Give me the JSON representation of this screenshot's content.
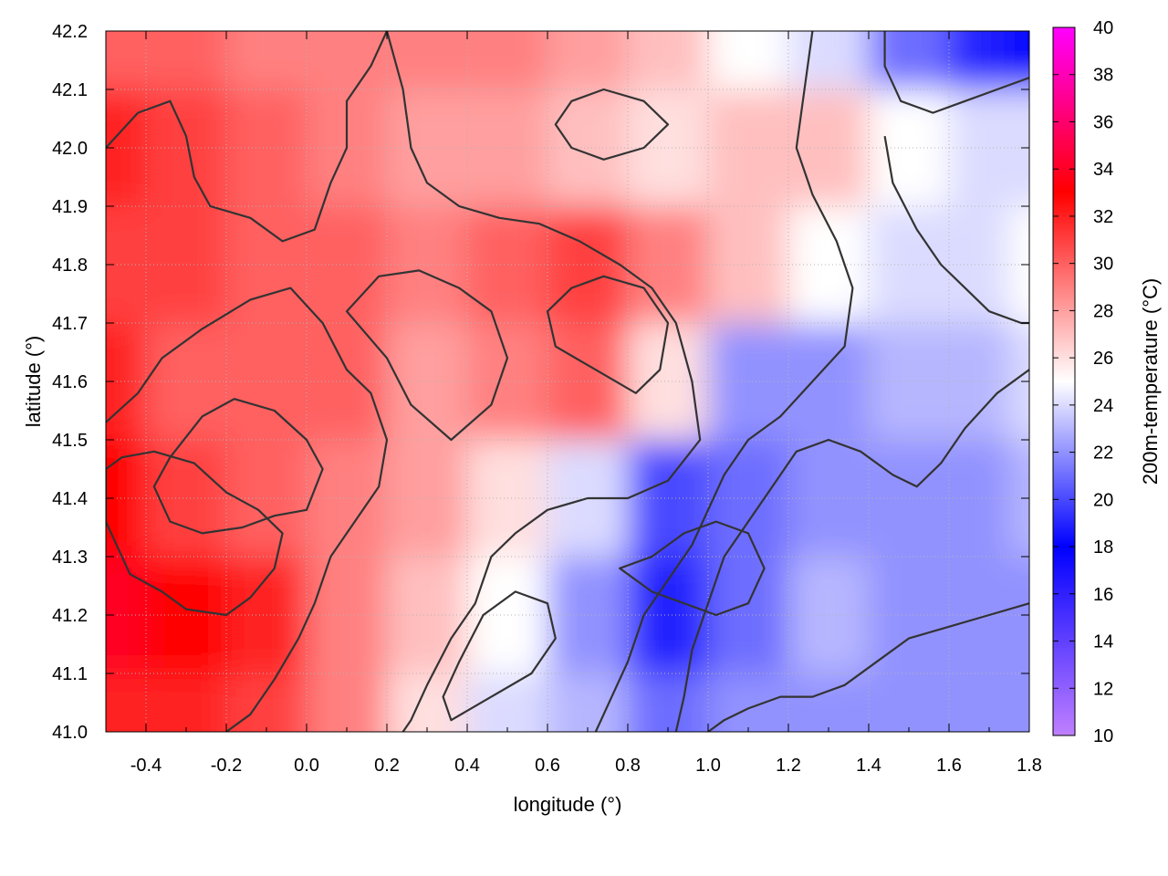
{
  "chart_data": {
    "type": "heatmap",
    "title": "",
    "xlabel": "longitude (°)",
    "ylabel": "latitude (°)",
    "colorbar_label": "200m-temperature (°C)",
    "xlim": [
      -0.5,
      1.8
    ],
    "ylim": [
      41.0,
      42.2
    ],
    "clim": [
      10,
      40
    ],
    "x_ticks": [
      -0.4,
      -0.2,
      0.0,
      0.2,
      0.4,
      0.6,
      0.8,
      1.0,
      1.2,
      1.4,
      1.6,
      1.8
    ],
    "x_tick_labels": [
      "-0.4",
      "-0.2",
      "0.0",
      "0.2",
      "0.4",
      "0.6",
      "0.8",
      "1.0",
      "1.2",
      "1.4",
      "1.6",
      "1.8"
    ],
    "y_ticks": [
      41.0,
      41.1,
      41.2,
      41.3,
      41.4,
      41.5,
      41.6,
      41.7,
      41.8,
      41.9,
      42.0,
      42.1,
      42.2
    ],
    "y_tick_labels": [
      "41.0",
      "41.1",
      "41.2",
      "41.3",
      "41.4",
      "41.5",
      "41.6",
      "41.7",
      "41.8",
      "41.9",
      "42.0",
      "42.1",
      "42.2"
    ],
    "colorbar_ticks": [
      10,
      12,
      14,
      16,
      18,
      20,
      22,
      24,
      26,
      28,
      30,
      32,
      34,
      36,
      38,
      40
    ],
    "colorbar_tick_labels": [
      "10",
      "12",
      "14",
      "16",
      "18",
      "20",
      "22",
      "24",
      "26",
      "28",
      "30",
      "32",
      "34",
      "36",
      "38",
      "40"
    ],
    "colormap": [
      {
        "value": 10,
        "color": "#c080ff"
      },
      {
        "value": 18,
        "color": "#0000ff"
      },
      {
        "value": 25,
        "color": "#ffffff"
      },
      {
        "value": 33,
        "color": "#ff0000"
      },
      {
        "value": 40,
        "color": "#ff00ff"
      }
    ],
    "grid": true,
    "temperature_field": {
      "x": [
        -0.5,
        -0.3,
        -0.1,
        0.1,
        0.3,
        0.5,
        0.7,
        0.9,
        1.1,
        1.3,
        1.5,
        1.7,
        1.8
      ],
      "y": [
        41.0,
        41.2,
        41.4,
        41.6,
        41.8,
        42.0,
        42.2
      ],
      "z": [
        [
          32,
          32,
          31,
          29,
          26,
          24,
          23,
          21,
          22,
          22,
          22,
          22,
          22
        ],
        [
          34,
          33,
          32,
          29,
          27,
          25,
          22,
          19,
          21,
          23,
          22,
          22,
          22
        ],
        [
          33,
          31,
          30,
          29,
          28,
          26,
          24,
          20,
          21,
          22,
          22,
          22,
          23
        ],
        [
          32,
          30,
          30,
          30,
          28,
          29,
          30,
          26,
          22,
          22,
          23,
          23,
          24
        ],
        [
          31,
          31,
          30,
          30,
          29,
          30,
          31,
          29,
          27,
          25,
          24,
          24,
          25
        ],
        [
          32,
          31,
          30,
          29,
          28,
          28,
          27,
          26,
          27,
          27,
          25,
          24,
          24
        ],
        [
          30,
          30,
          29,
          29,
          29,
          29,
          28,
          27,
          25,
          24,
          21,
          19,
          18
        ]
      ]
    },
    "contour_lines": [
      {
        "name": "west-warm-core",
        "closed": true,
        "points": [
          [
            -0.5,
            41.36
          ],
          [
            -0.44,
            41.27
          ],
          [
            -0.36,
            41.24
          ],
          [
            -0.3,
            41.21
          ],
          [
            -0.2,
            41.2
          ],
          [
            -0.14,
            41.23
          ],
          [
            -0.08,
            41.28
          ],
          [
            -0.06,
            41.34
          ],
          [
            -0.12,
            41.38
          ],
          [
            -0.2,
            41.41
          ],
          [
            -0.28,
            41.46
          ],
          [
            -0.38,
            41.48
          ],
          [
            -0.46,
            41.47
          ],
          [
            -0.5,
            41.45
          ]
        ]
      },
      {
        "name": "west-inner",
        "closed": true,
        "points": [
          [
            -0.34,
            41.36
          ],
          [
            -0.26,
            41.34
          ],
          [
            -0.16,
            41.35
          ],
          [
            -0.08,
            41.37
          ],
          [
            0.0,
            41.38
          ],
          [
            0.04,
            41.45
          ],
          [
            0.0,
            41.5
          ],
          [
            -0.08,
            41.55
          ],
          [
            -0.18,
            41.57
          ],
          [
            -0.26,
            41.54
          ],
          [
            -0.34,
            41.47
          ],
          [
            -0.38,
            41.42
          ]
        ]
      },
      {
        "name": "west-ridge",
        "closed": false,
        "points": [
          [
            -0.5,
            41.53
          ],
          [
            -0.42,
            41.58
          ],
          [
            -0.36,
            41.64
          ],
          [
            -0.26,
            41.69
          ],
          [
            -0.14,
            41.74
          ],
          [
            -0.04,
            41.76
          ],
          [
            0.04,
            41.7
          ],
          [
            0.1,
            41.62
          ],
          [
            0.16,
            41.58
          ],
          [
            0.2,
            41.5
          ],
          [
            0.18,
            41.42
          ],
          [
            0.12,
            41.36
          ],
          [
            0.06,
            41.3
          ],
          [
            0.02,
            41.22
          ],
          [
            -0.02,
            41.16
          ],
          [
            -0.08,
            41.09
          ],
          [
            -0.14,
            41.03
          ],
          [
            -0.2,
            41.0
          ]
        ]
      },
      {
        "name": "north-west",
        "closed": false,
        "points": [
          [
            -0.5,
            42.0
          ],
          [
            -0.42,
            42.06
          ],
          [
            -0.34,
            42.08
          ],
          [
            -0.3,
            42.02
          ],
          [
            -0.28,
            41.95
          ],
          [
            -0.24,
            41.9
          ],
          [
            -0.14,
            41.88
          ],
          [
            -0.06,
            41.84
          ],
          [
            0.02,
            41.86
          ],
          [
            0.06,
            41.94
          ],
          [
            0.1,
            42.0
          ],
          [
            0.1,
            42.08
          ],
          [
            0.16,
            42.14
          ],
          [
            0.2,
            42.2
          ]
        ]
      },
      {
        "name": "central-lobe",
        "closed": true,
        "points": [
          [
            0.1,
            41.72
          ],
          [
            0.2,
            41.64
          ],
          [
            0.26,
            41.56
          ],
          [
            0.36,
            41.5
          ],
          [
            0.46,
            41.56
          ],
          [
            0.5,
            41.64
          ],
          [
            0.46,
            41.72
          ],
          [
            0.38,
            41.76
          ],
          [
            0.28,
            41.79
          ],
          [
            0.18,
            41.78
          ]
        ]
      },
      {
        "name": "central-north",
        "closed": false,
        "points": [
          [
            0.2,
            42.2
          ],
          [
            0.24,
            42.1
          ],
          [
            0.26,
            42.0
          ],
          [
            0.3,
            41.94
          ],
          [
            0.38,
            41.9
          ],
          [
            0.48,
            41.88
          ],
          [
            0.58,
            41.87
          ],
          [
            0.68,
            41.84
          ],
          [
            0.78,
            41.8
          ],
          [
            0.86,
            41.76
          ],
          [
            0.92,
            41.7
          ],
          [
            0.96,
            41.6
          ],
          [
            0.98,
            41.5
          ],
          [
            0.9,
            41.43
          ],
          [
            0.8,
            41.4
          ],
          [
            0.7,
            41.4
          ],
          [
            0.6,
            41.38
          ],
          [
            0.52,
            41.34
          ],
          [
            0.46,
            41.3
          ],
          [
            0.42,
            41.22
          ],
          [
            0.36,
            41.16
          ],
          [
            0.3,
            41.08
          ],
          [
            0.26,
            41.02
          ],
          [
            0.24,
            41.0
          ]
        ]
      },
      {
        "name": "east-central",
        "closed": true,
        "points": [
          [
            0.62,
            41.66
          ],
          [
            0.72,
            41.62
          ],
          [
            0.82,
            41.58
          ],
          [
            0.88,
            41.62
          ],
          [
            0.9,
            41.7
          ],
          [
            0.84,
            41.76
          ],
          [
            0.74,
            41.78
          ],
          [
            0.66,
            41.76
          ],
          [
            0.6,
            41.72
          ]
        ]
      },
      {
        "name": "warm-cool-boundary",
        "closed": false,
        "points": [
          [
            1.26,
            42.2
          ],
          [
            1.24,
            42.1
          ],
          [
            1.22,
            42.0
          ],
          [
            1.26,
            41.92
          ],
          [
            1.32,
            41.84
          ],
          [
            1.36,
            41.76
          ],
          [
            1.34,
            41.66
          ],
          [
            1.26,
            41.6
          ],
          [
            1.18,
            41.54
          ],
          [
            1.1,
            41.5
          ],
          [
            1.04,
            41.44
          ],
          [
            1.0,
            41.38
          ],
          [
            0.96,
            41.32
          ],
          [
            0.9,
            41.26
          ],
          [
            0.84,
            41.2
          ],
          [
            0.8,
            41.12
          ],
          [
            0.76,
            41.06
          ],
          [
            0.72,
            41.0
          ]
        ]
      },
      {
        "name": "cool-east-upper",
        "closed": false,
        "points": [
          [
            1.8,
            41.62
          ],
          [
            1.72,
            41.58
          ],
          [
            1.64,
            41.52
          ],
          [
            1.58,
            41.46
          ],
          [
            1.52,
            41.42
          ],
          [
            1.46,
            41.44
          ],
          [
            1.38,
            41.48
          ],
          [
            1.3,
            41.5
          ],
          [
            1.22,
            41.48
          ],
          [
            1.16,
            41.42
          ],
          [
            1.1,
            41.36
          ],
          [
            1.04,
            41.3
          ],
          [
            1.0,
            41.22
          ],
          [
            0.96,
            41.14
          ],
          [
            0.94,
            41.06
          ],
          [
            0.92,
            41.0
          ]
        ]
      },
      {
        "name": "cool-east-lower",
        "closed": false,
        "points": [
          [
            1.8,
            41.22
          ],
          [
            1.7,
            41.2
          ],
          [
            1.6,
            41.18
          ],
          [
            1.5,
            41.16
          ],
          [
            1.42,
            41.12
          ],
          [
            1.34,
            41.08
          ],
          [
            1.26,
            41.06
          ],
          [
            1.18,
            41.06
          ],
          [
            1.1,
            41.04
          ],
          [
            1.04,
            41.02
          ],
          [
            1.0,
            41.0
          ]
        ]
      },
      {
        "name": "blue-core",
        "closed": true,
        "points": [
          [
            0.78,
            41.28
          ],
          [
            0.86,
            41.3
          ],
          [
            0.94,
            41.34
          ],
          [
            1.02,
            41.36
          ],
          [
            1.1,
            41.34
          ],
          [
            1.14,
            41.28
          ],
          [
            1.1,
            41.22
          ],
          [
            1.02,
            41.2
          ],
          [
            0.94,
            41.22
          ],
          [
            0.86,
            41.24
          ]
        ]
      },
      {
        "name": "southern-lobe",
        "closed": true,
        "points": [
          [
            0.36,
            41.02
          ],
          [
            0.46,
            41.06
          ],
          [
            0.56,
            41.1
          ],
          [
            0.62,
            41.16
          ],
          [
            0.6,
            41.22
          ],
          [
            0.52,
            41.24
          ],
          [
            0.44,
            41.2
          ],
          [
            0.38,
            41.12
          ],
          [
            0.34,
            41.06
          ]
        ]
      },
      {
        "name": "north-blue",
        "closed": true,
        "points": [
          [
            0.66,
            42.08
          ],
          [
            0.74,
            42.1
          ],
          [
            0.84,
            42.08
          ],
          [
            0.9,
            42.04
          ],
          [
            0.84,
            42.0
          ],
          [
            0.74,
            41.98
          ],
          [
            0.66,
            42.0
          ],
          [
            0.62,
            42.04
          ]
        ]
      },
      {
        "name": "north-east-cold",
        "closed": false,
        "points": [
          [
            1.44,
            42.2
          ],
          [
            1.44,
            42.14
          ],
          [
            1.48,
            42.08
          ],
          [
            1.56,
            42.06
          ],
          [
            1.64,
            42.08
          ],
          [
            1.72,
            42.1
          ],
          [
            1.8,
            42.12
          ]
        ]
      },
      {
        "name": "east-band",
        "closed": false,
        "points": [
          [
            1.44,
            42.02
          ],
          [
            1.46,
            41.94
          ],
          [
            1.52,
            41.86
          ],
          [
            1.58,
            41.8
          ],
          [
            1.64,
            41.76
          ],
          [
            1.7,
            41.72
          ],
          [
            1.78,
            41.7
          ],
          [
            1.8,
            41.7
          ]
        ]
      }
    ]
  }
}
